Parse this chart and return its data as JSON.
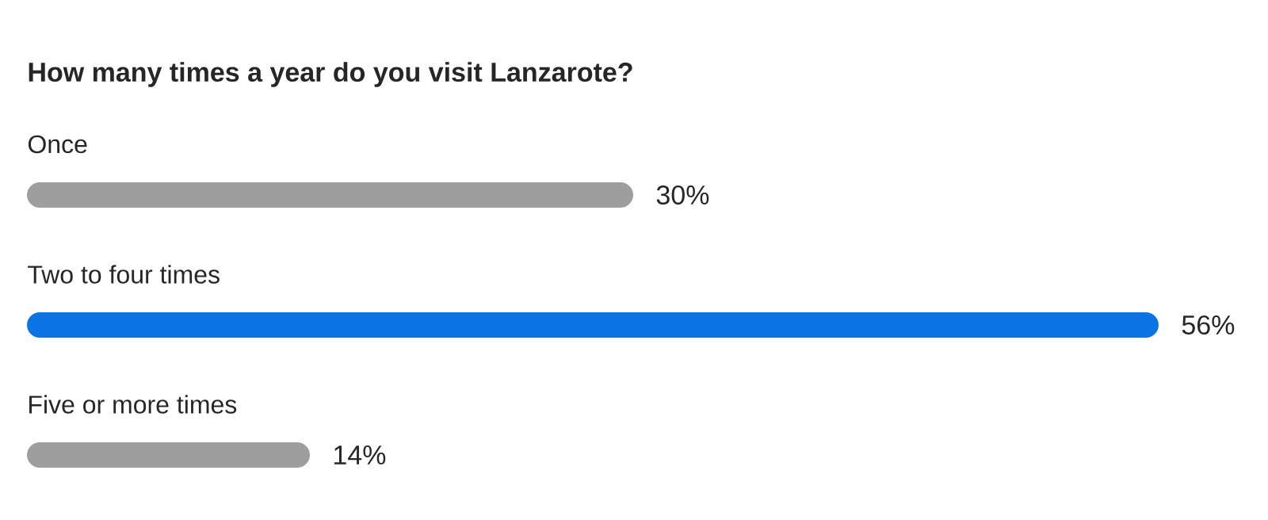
{
  "chart_data": {
    "type": "bar",
    "orientation": "horizontal",
    "title": "How many times a year do you visit Lanzarote?",
    "categories": [
      "Once",
      "Two to four times",
      "Five or more times"
    ],
    "values": [
      30,
      56,
      14
    ],
    "colors": [
      "#9e9e9e",
      "#0b74e5",
      "#9e9e9e"
    ],
    "value_labels": [
      "30%",
      "56%",
      "14%"
    ]
  }
}
